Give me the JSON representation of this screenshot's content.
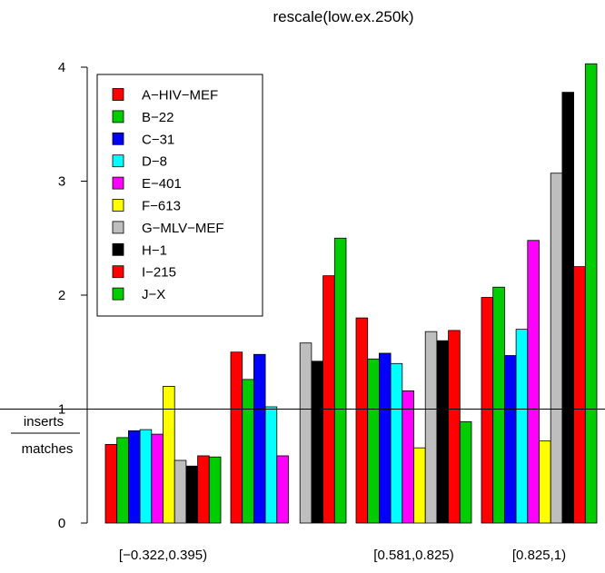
{
  "chart_data": {
    "type": "bar",
    "title": "rescale(low.ex.250k)",
    "ylabel_top": "inserts",
    "ylabel_bottom": "matches",
    "ylim": [
      0,
      4
    ],
    "yticks": [
      0,
      1,
      2,
      3,
      4
    ],
    "reference_line": 1,
    "legend_position": "top-left",
    "categories": [
      "[−0.322,0.395)",
      "",
      "[0.581,0.825)",
      "[0.825,1)"
    ],
    "series": [
      {
        "name": "A−HIV−MEF",
        "color": "#ff0000",
        "values": [
          0.69,
          1.5,
          1.8,
          1.98
        ]
      },
      {
        "name": "B−22",
        "color": "#00cd00",
        "values": [
          0.75,
          1.26,
          1.44,
          2.07
        ]
      },
      {
        "name": "C−31",
        "color": "#0000ff",
        "values": [
          0.81,
          1.48,
          1.49,
          1.47
        ]
      },
      {
        "name": "D−8",
        "color": "#00ffff",
        "values": [
          0.82,
          1.02,
          1.4,
          1.7
        ]
      },
      {
        "name": "E−401",
        "color": "#ff00ff",
        "values": [
          0.78,
          0.59,
          1.16,
          2.48
        ]
      },
      {
        "name": "F−613",
        "color": "#ffff00",
        "values": [
          1.2,
          0.0,
          0.66,
          0.72
        ]
      },
      {
        "name": "G−MLV−MEF",
        "color": "#bebebe",
        "values": [
          0.55,
          1.58,
          1.68,
          3.07
        ]
      },
      {
        "name": "H−1",
        "color": "#000000",
        "values": [
          0.5,
          1.42,
          1.6,
          3.78
        ]
      },
      {
        "name": "I−215",
        "color": "#ff0000",
        "values": [
          0.59,
          2.17,
          1.69,
          2.25
        ]
      },
      {
        "name": "J−X",
        "color": "#00cd00",
        "values": [
          0.58,
          2.5,
          0.89,
          4.03
        ]
      }
    ]
  }
}
